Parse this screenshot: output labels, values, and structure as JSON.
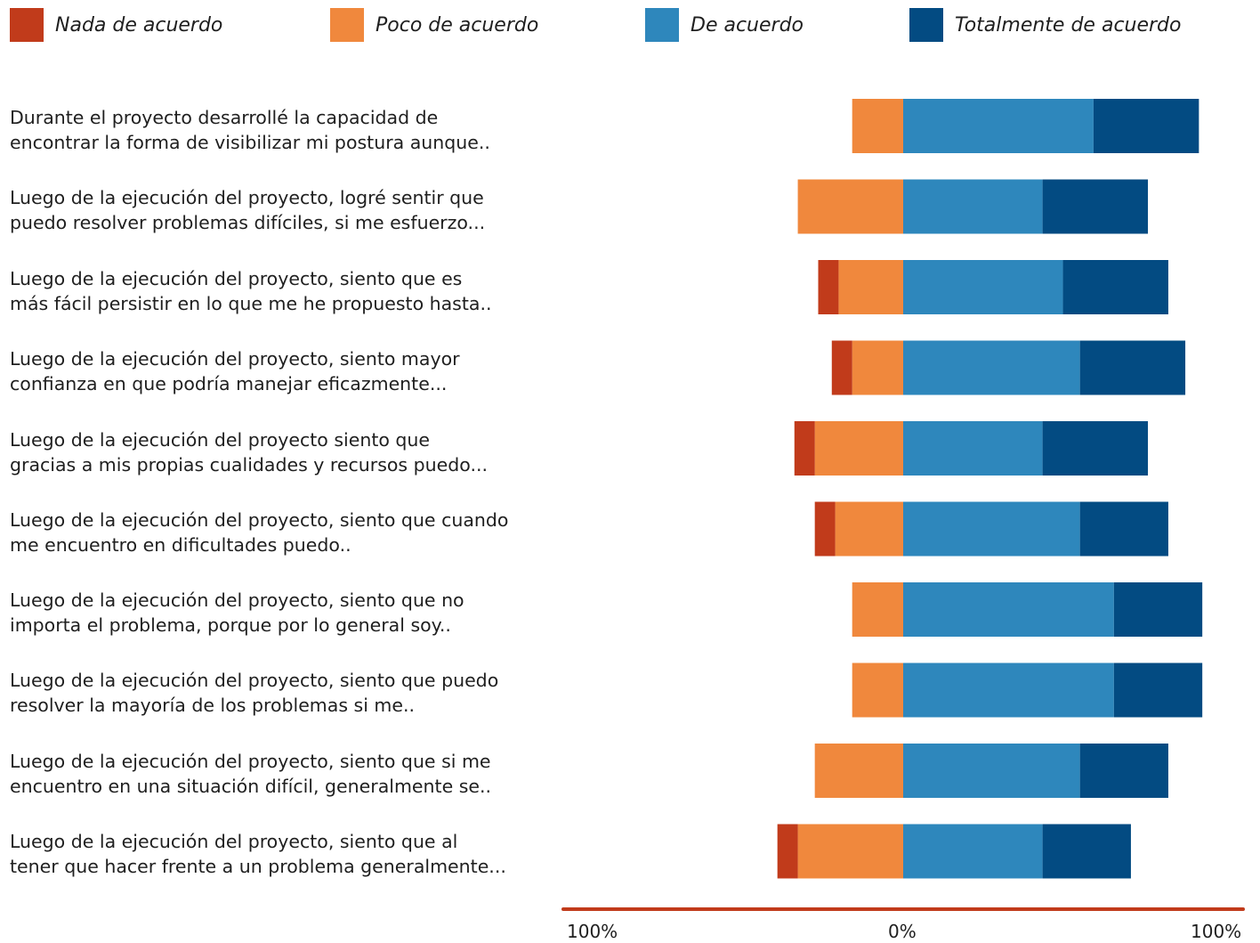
{
  "chart_data": {
    "type": "bar",
    "orientation": "horizontal",
    "stacked": "diverging",
    "xlim": [
      -100,
      100
    ],
    "x_ticks": [
      "100%",
      "0%",
      "100%"
    ],
    "series": [
      {
        "name": "Nada de acuerdo",
        "color": "#c13b1b",
        "side": "negative",
        "values": [
          0,
          0,
          6,
          6,
          6,
          6,
          0,
          0,
          0,
          6
        ]
      },
      {
        "name": "Poco de acuerdo",
        "color": "#f0883d",
        "side": "negative",
        "values": [
          15,
          31,
          19,
          15,
          26,
          20,
          15,
          15,
          26,
          31
        ]
      },
      {
        "name": "De acuerdo",
        "color": "#2e87bc",
        "side": "positive",
        "values": [
          56,
          41,
          47,
          52,
          41,
          52,
          62,
          62,
          52,
          41
        ]
      },
      {
        "name": "Totalmente de acuerdo",
        "color": "#034b82",
        "side": "positive",
        "values": [
          31,
          31,
          31,
          31,
          31,
          26,
          26,
          26,
          26,
          26
        ]
      }
    ],
    "categories": [
      [
        "Durante el proyecto desarrollé la capacidad de",
        "encontrar la forma de visibilizar mi postura aunque.."
      ],
      [
        "Luego de la ejecución del proyecto, logré sentir que",
        "puedo resolver problemas difíciles, si me esfuerzo..."
      ],
      [
        "Luego de la ejecución del proyecto, siento que es",
        "más fácil persistir en lo que me he propuesto hasta.."
      ],
      [
        "Luego de la ejecución del proyecto, siento mayor",
        "confianza en que podría manejar eficazmente..."
      ],
      [
        "Luego de la ejecución del proyecto siento que",
        "gracias a mis propias cualidades y recursos puedo..."
      ],
      [
        "Luego de la ejecución del proyecto, siento que cuando",
        "me encuentro en dificultades puedo.."
      ],
      [
        "Luego de la ejecución del proyecto, siento que no",
        "importa el problema, porque por lo general soy.."
      ],
      [
        "Luego de la ejecución del proyecto, siento que puedo",
        "resolver la mayoría de los problemas si me.."
      ],
      [
        "Luego de la ejecución del proyecto, siento que si me",
        "encuentro en una situación difícil, generalmente se.."
      ],
      [
        "Luego de la ejecución del proyecto, siento que al",
        "tener que hacer frente a un problema generalmente..."
      ]
    ],
    "axis_color": "#c13b1b"
  }
}
